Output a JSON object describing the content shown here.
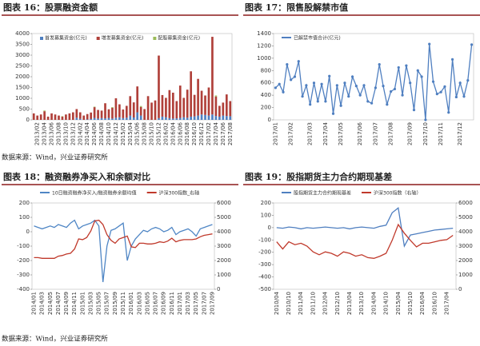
{
  "chart_data": [
    {
      "type": "bar",
      "stacked": true,
      "title": "图表 16：股票融资金额",
      "categories": [
        null,
        "2013/02",
        null,
        "2013/04",
        null,
        "2013/06",
        null,
        "2013/08",
        null,
        "2013/10",
        null,
        "2013/12",
        null,
        "2014/02",
        null,
        "2014/04",
        null,
        "2014/06",
        null,
        "2014/08",
        null,
        "2014/10",
        null,
        "2014/12",
        null,
        "2015/02",
        null,
        "2015/04",
        null,
        "2015/06",
        null,
        "2015/08",
        null,
        "2015/10",
        null,
        "2015/12",
        null,
        "2016/02",
        null,
        "2016/04",
        null,
        "2016/06",
        null,
        "2016/08",
        null,
        "2016/10",
        null,
        "2016/12",
        null,
        "2017/02",
        null,
        "2017/04",
        null,
        "2017/06",
        null,
        "2017/08"
      ],
      "series": [
        {
          "name": "首发募集资金(亿元)",
          "color": "#4f7fc0",
          "values": [
            0,
            0,
            0,
            0,
            0,
            0,
            0,
            0,
            0,
            0,
            0,
            0,
            100,
            50,
            0,
            20,
            40,
            90,
            60,
            80,
            70,
            90,
            60,
            100,
            120,
            80,
            100,
            200,
            110,
            350,
            200,
            0,
            0,
            0,
            0,
            80,
            150,
            120,
            80,
            60,
            70,
            90,
            120,
            100,
            150,
            160,
            200,
            250,
            230,
            200,
            250,
            180,
            150,
            200,
            180,
            170
          ]
        },
        {
          "name": "增发募集资金(亿元)",
          "color": "#b0403a",
          "values": [
            300,
            200,
            250,
            400,
            150,
            300,
            250,
            200,
            150,
            250,
            300,
            350,
            400,
            300,
            200,
            250,
            300,
            500,
            400,
            350,
            700,
            400,
            500,
            900,
            600,
            400,
            550,
            900,
            700,
            1200,
            400,
            500,
            1100,
            800,
            900,
            2900,
            1000,
            900,
            1300,
            1200,
            800,
            1500,
            900,
            1300,
            2100,
            1000,
            1700,
            1100,
            900,
            1300,
            3600,
            900,
            500,
            600,
            1000,
            700
          ]
        },
        {
          "name": "配股募集资金(亿元)",
          "color": "#9bbb59",
          "values": [
            0,
            0,
            0,
            30,
            0,
            0,
            0,
            0,
            20,
            0,
            0,
            0,
            0,
            0,
            0,
            0,
            0,
            20,
            0,
            0,
            0,
            0,
            30,
            0,
            0,
            0,
            0,
            0,
            0,
            0,
            40,
            0,
            0,
            0,
            0,
            0,
            0,
            0,
            0,
            0,
            0,
            0,
            0,
            0,
            0,
            0,
            0,
            0,
            0,
            0,
            0,
            50,
            0,
            0,
            0,
            0
          ]
        }
      ],
      "ylim": [
        0,
        4000
      ],
      "yticks": [
        0,
        500,
        1000,
        1500,
        2000,
        2500,
        3000,
        3500,
        4000
      ]
    },
    {
      "type": "line",
      "markers": true,
      "title": "图表 17：限售股解禁市值",
      "categories": [
        "2017/01",
        null,
        null,
        null,
        "2017/02",
        null,
        null,
        null,
        null,
        "2017/03",
        null,
        null,
        null,
        "2017/04",
        null,
        null,
        null,
        "2017/05",
        null,
        null,
        null,
        null,
        "2017/06",
        null,
        null,
        null,
        "2017/07",
        null,
        null,
        null,
        "2017/08",
        null,
        null,
        null,
        null,
        "2017/09",
        null,
        null,
        null,
        "2017/10",
        null,
        null,
        null,
        "2017/11",
        null,
        null,
        null,
        null,
        "2017/12",
        null,
        null,
        null
      ],
      "series": [
        {
          "name": "已解禁市值合计(亿元)",
          "color": "#4f7fc0",
          "values": [
            520,
            580,
            450,
            900,
            650,
            700,
            950,
            380,
            560,
            250,
            600,
            300,
            580,
            300,
            710,
            100,
            560,
            230,
            600,
            380,
            700,
            550,
            400,
            560,
            300,
            270,
            520,
            900,
            550,
            250,
            460,
            500,
            850,
            400,
            880,
            600,
            160,
            800,
            700,
            0,
            1230,
            620,
            420,
            450,
            540,
            120,
            980,
            370,
            600,
            380,
            640,
            1220
          ]
        }
      ],
      "ylim": [
        0,
        1400
      ],
      "yticks": [
        0,
        200,
        400,
        600,
        800,
        1000,
        1200,
        1400
      ]
    },
    {
      "type": "line",
      "title": "图表 18：融资融券净买入和余额对比",
      "categories": [
        "2014/01",
        null,
        "2014/03",
        null,
        "2014/05",
        null,
        "2014/07",
        null,
        "2014/09",
        null,
        "2014/11",
        null,
        "2015/01",
        null,
        "2015/03",
        null,
        "2015/05",
        null,
        "2015/07",
        null,
        "2015/09",
        null,
        "2015/11",
        null,
        "2016/01",
        null,
        "2016/03",
        null,
        "2016/05",
        null,
        "2016/07",
        null,
        "2016/09",
        null,
        "2016/11",
        null,
        "2017/01",
        null,
        "2017/03",
        null,
        "2017/05",
        null,
        "2017/07",
        null,
        "2017/09"
      ],
      "series": [
        {
          "name": "10日融资融券净买入/融资融券余额均值",
          "color": "#4f86c5",
          "values": [
            40,
            30,
            20,
            30,
            40,
            30,
            50,
            40,
            30,
            60,
            80,
            20,
            40,
            50,
            60,
            80,
            40,
            -350,
            -100,
            10,
            20,
            40,
            60,
            -200,
            -100,
            -50,
            -20,
            10,
            0,
            20,
            30,
            20,
            0,
            10,
            30,
            -20,
            0,
            10,
            20,
            0,
            -30,
            20,
            30,
            40,
            50
          ]
        },
        {
          "name": "沪深300指数_右轴",
          "color": "#c0392b",
          "axis": "y2",
          "values": [
            2200,
            2200,
            2150,
            2150,
            2150,
            2150,
            2300,
            2350,
            2450,
            2500,
            2800,
            3500,
            3450,
            3600,
            4050,
            4750,
            4800,
            4500,
            3800,
            3400,
            3200,
            3500,
            3600,
            3700,
            2950,
            2900,
            3200,
            3200,
            3150,
            3150,
            3200,
            3300,
            3250,
            3350,
            3550,
            3300,
            3400,
            3450,
            3450,
            3450,
            3500,
            3650,
            3750,
            3800,
            3850
          ]
        }
      ],
      "ylim": [
        -400,
        200
      ],
      "yticks": [
        -400,
        -300,
        -200,
        -100,
        0,
        100,
        200
      ],
      "y2lim": [
        0,
        6000
      ],
      "y2ticks": [
        0,
        1000,
        2000,
        3000,
        4000,
        5000,
        6000
      ]
    },
    {
      "type": "line",
      "title": "图表 19：股指期货主力合约期现基差",
      "categories": [
        "2010/04",
        null,
        "2010/10",
        null,
        "2011/04",
        null,
        "2011/10",
        null,
        "2012/04",
        null,
        "2012/10",
        null,
        "2013/04",
        null,
        "2013/10",
        null,
        "2014/04",
        null,
        "2014/10",
        null,
        "2015/04",
        null,
        "2015/10",
        null,
        "2016/04",
        null,
        "2016/10",
        null,
        "2017/04",
        null
      ],
      "series": [
        {
          "name": "股指期货主力合约期现基差",
          "color": "#4f7fc0",
          "values": [
            0,
            -5,
            5,
            0,
            -10,
            0,
            -5,
            0,
            5,
            0,
            -5,
            0,
            -10,
            0,
            5,
            0,
            -5,
            10,
            20,
            120,
            160,
            -150,
            -60,
            -50,
            -40,
            -30,
            -20,
            -15,
            -10,
            -5
          ]
        },
        {
          "name": "沪深300指数（右轴）",
          "color": "#c0392b",
          "axis": "y2",
          "values": [
            3300,
            2800,
            3300,
            3100,
            3200,
            3000,
            2600,
            2400,
            2600,
            2500,
            2300,
            2600,
            2500,
            2300,
            2400,
            2200,
            2150,
            2300,
            2500,
            3400,
            4500,
            3900,
            3400,
            2950,
            3200,
            3200,
            3300,
            3400,
            3450,
            3750
          ]
        }
      ],
      "ylim": [
        -500,
        200
      ],
      "yticks": [
        -500,
        -400,
        -300,
        -200,
        -100,
        0,
        100,
        200
      ],
      "y2lim": [
        0,
        6000
      ],
      "y2ticks": [
        0,
        1000,
        2000,
        3000,
        4000,
        5000,
        6000
      ]
    }
  ],
  "sources": [
    "数据来源：Wind，兴业证券研究所",
    "数据来源：Wind，兴业证券研究所"
  ]
}
